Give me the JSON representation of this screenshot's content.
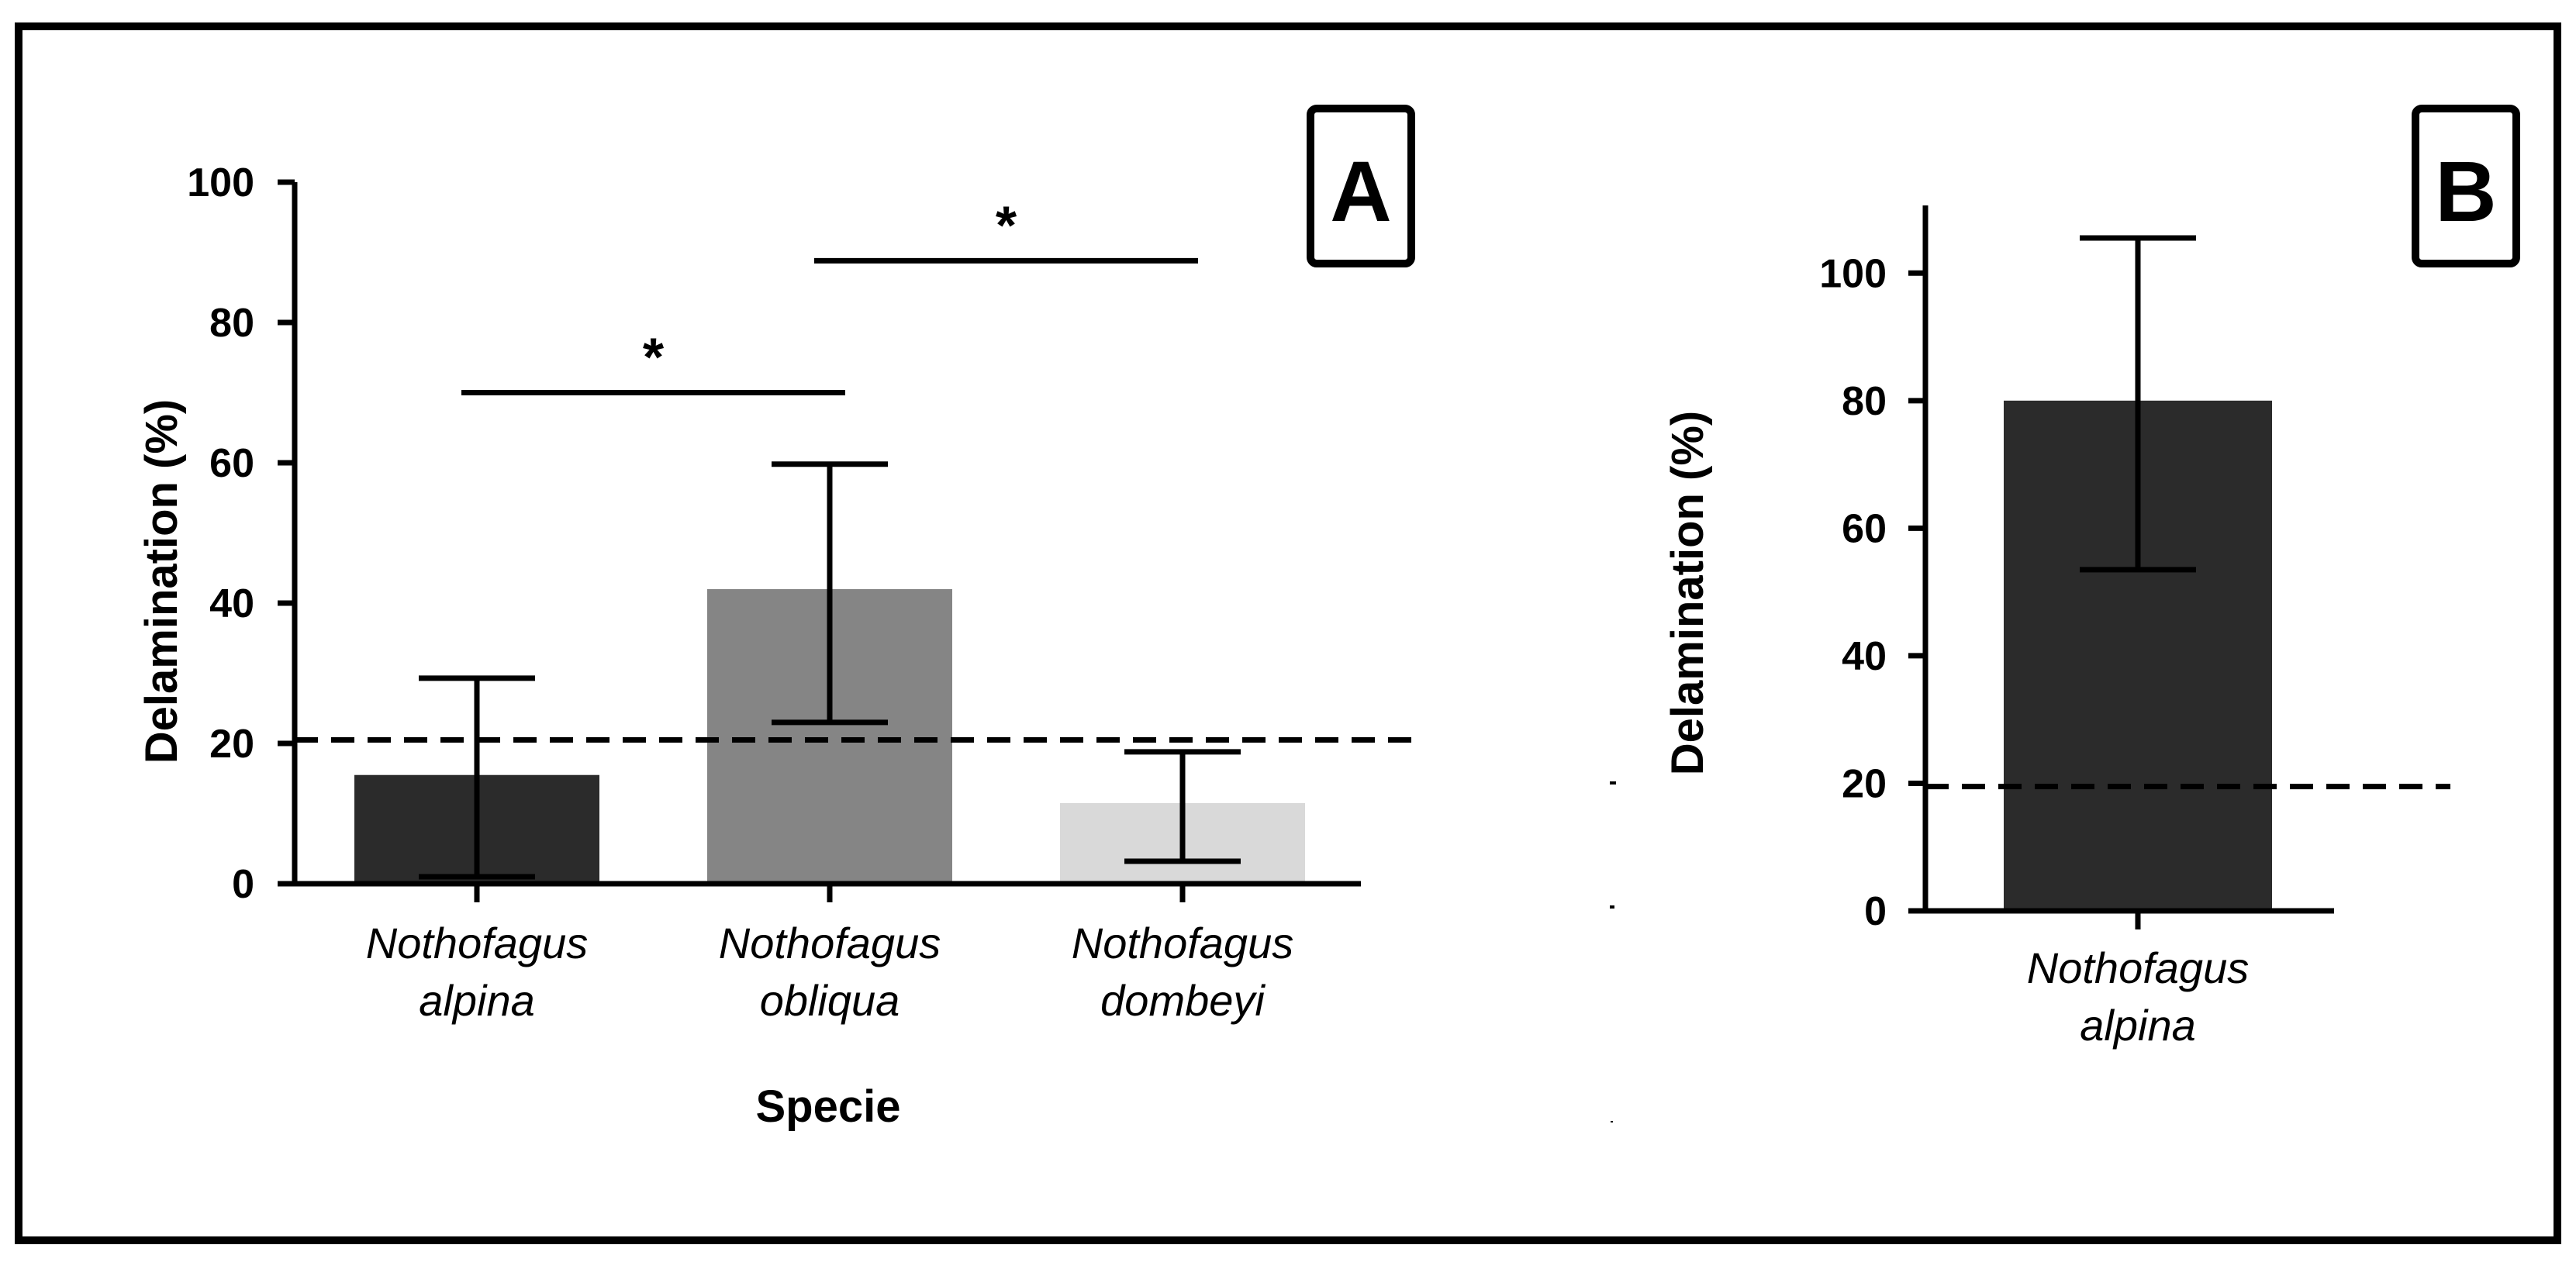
{
  "chart_data": [
    {
      "panel": "A",
      "type": "bar",
      "xlabel": "Specie",
      "ylabel": "Delamination (%)",
      "ylim": [
        0,
        100
      ],
      "yticks": [
        0,
        20,
        40,
        60,
        80,
        100
      ],
      "categories": [
        {
          "line1": "Nothofagus",
          "line2": "alpina"
        },
        {
          "line1": "Nothofagus",
          "line2": "obliqua"
        },
        {
          "line1": "Nothofagus",
          "line2": "dombeyi"
        }
      ],
      "values": [
        15.5,
        42,
        11.5
      ],
      "error_low": [
        1,
        23,
        3.2
      ],
      "error_high": [
        29.3,
        59.8,
        18.8
      ],
      "bar_colors": [
        "#2b2b2b",
        "#858585",
        "#d9d9d9"
      ],
      "reference_line": 20.5,
      "significance": [
        {
          "from": 0,
          "to": 1,
          "label": "*",
          "y": 70
        },
        {
          "from": 1,
          "to": 2,
          "label": "*",
          "y": 88.8
        }
      ]
    },
    {
      "panel": "B",
      "type": "bar",
      "xlabel": "",
      "ylabel": "Delamination (%)",
      "ylim": [
        0,
        110
      ],
      "yticks": [
        0,
        20,
        40,
        60,
        80,
        100
      ],
      "categories": [
        {
          "line1": "Nothofagus",
          "line2": "alpina"
        }
      ],
      "values": [
        80
      ],
      "error_low": [
        53.5
      ],
      "error_high": [
        105.5
      ],
      "bar_colors": [
        "#2b2b2b"
      ],
      "reference_line": 19.5,
      "significance": []
    }
  ]
}
